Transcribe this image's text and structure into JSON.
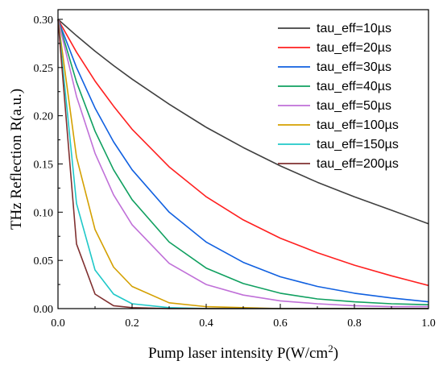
{
  "chart_data": {
    "type": "line",
    "title": "",
    "xlabel": "Pump laser intensity P(W/cm",
    "xlabel_sup": "2",
    "xlabel_end": ")",
    "ylabel": "THz Reflection R(a.u.)",
    "xlim": [
      0.0,
      1.0
    ],
    "ylim": [
      0.0,
      0.31
    ],
    "x_ticks": [
      0.0,
      0.2,
      0.4,
      0.6,
      0.8,
      1.0
    ],
    "x_tick_labels": [
      "0.0",
      "0.2",
      "0.4",
      "0.6",
      "0.8",
      "1.0"
    ],
    "y_ticks": [
      0.0,
      0.05,
      0.1,
      0.15,
      0.2,
      0.25,
      0.3
    ],
    "y_tick_labels": [
      "0.00",
      "0.05",
      "0.10",
      "0.15",
      "0.20",
      "0.25",
      "0.30"
    ],
    "grid": false,
    "legend_position": "top-right",
    "x": [
      0.0,
      0.05,
      0.1,
      0.15,
      0.2,
      0.3,
      0.4,
      0.5,
      0.6,
      0.7,
      0.8,
      0.9,
      1.0
    ],
    "series": [
      {
        "name": "tau_eff=10µs",
        "color": "#404040",
        "values": [
          0.3,
          0.283,
          0.267,
          0.252,
          0.238,
          0.212,
          0.188,
          0.167,
          0.148,
          0.131,
          0.116,
          0.102,
          0.088
        ]
      },
      {
        "name": "tau_eff=20µs",
        "color": "#ff2020",
        "values": [
          0.3,
          0.266,
          0.236,
          0.21,
          0.186,
          0.147,
          0.116,
          0.092,
          0.073,
          0.058,
          0.045,
          0.034,
          0.024
        ]
      },
      {
        "name": "tau_eff=30µs",
        "color": "#1060e0",
        "values": [
          0.3,
          0.25,
          0.208,
          0.173,
          0.144,
          0.1,
          0.069,
          0.048,
          0.033,
          0.023,
          0.016,
          0.011,
          0.007
        ]
      },
      {
        "name": "tau_eff=40µs",
        "color": "#10a060",
        "values": [
          0.3,
          0.235,
          0.184,
          0.144,
          0.113,
          0.069,
          0.042,
          0.026,
          0.016,
          0.01,
          0.007,
          0.005,
          0.004
        ]
      },
      {
        "name": "tau_eff=50µs",
        "color": "#c070d8",
        "values": [
          0.3,
          0.22,
          0.161,
          0.118,
          0.087,
          0.047,
          0.025,
          0.014,
          0.008,
          0.005,
          0.003,
          0.002,
          0.002
        ]
      },
      {
        "name": "tau_eff=100µs",
        "color": "#d4a000",
        "values": [
          0.3,
          0.157,
          0.082,
          0.043,
          0.023,
          0.006,
          0.002,
          0.001,
          0.0,
          0.0,
          0.0,
          0.0,
          0.0
        ]
      },
      {
        "name": "tau_eff=150µs",
        "color": "#20c8c8",
        "values": [
          0.3,
          0.109,
          0.04,
          0.015,
          0.005,
          0.001,
          0.0,
          0.0,
          0.0,
          0.0,
          0.0,
          0.0,
          0.0
        ]
      },
      {
        "name": "tau_eff=200µs",
        "color": "#803030",
        "values": [
          0.3,
          0.067,
          0.015,
          0.003,
          0.001,
          0.0,
          0.0,
          0.0,
          0.0,
          0.0,
          0.0,
          0.0,
          0.0
        ]
      }
    ]
  }
}
